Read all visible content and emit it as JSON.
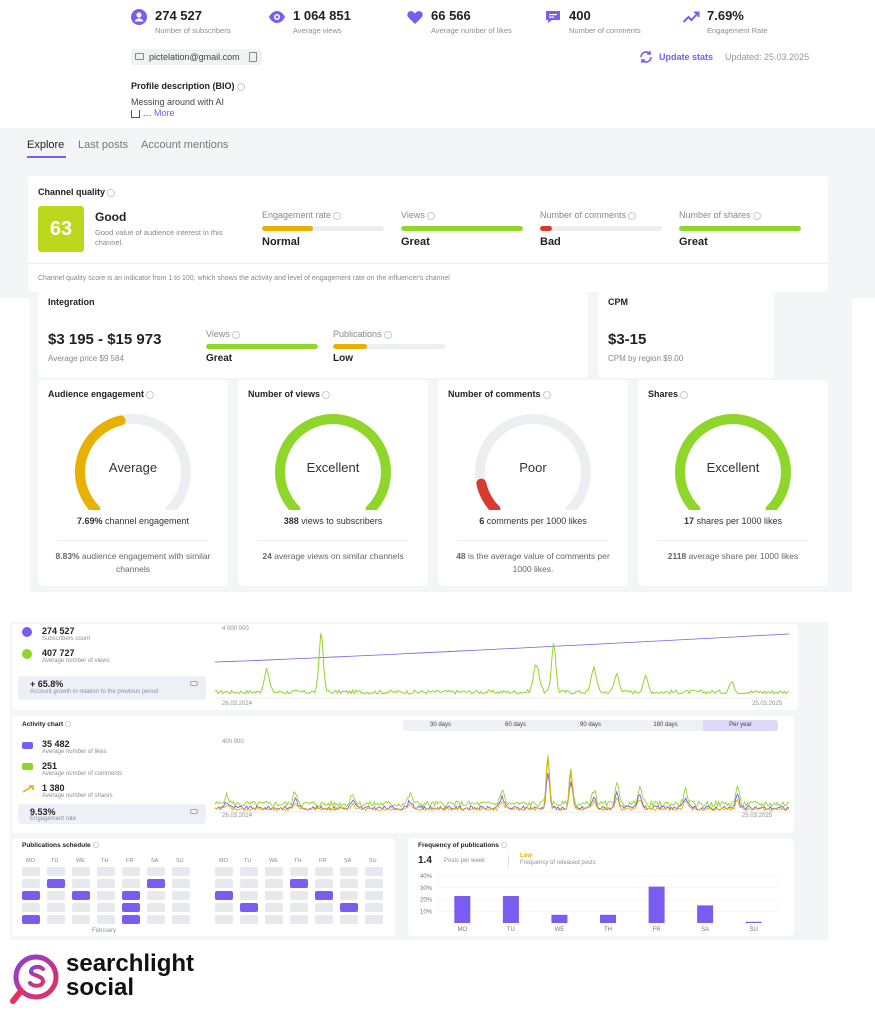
{
  "stats": [
    {
      "icon": "user-icon",
      "value": "274 527",
      "label": "Number of subscribers"
    },
    {
      "icon": "eye-icon",
      "value": "1 064 851",
      "label": "Average views"
    },
    {
      "icon": "heart-icon",
      "value": "66 566",
      "label": "Average number of likes"
    },
    {
      "icon": "comment-icon",
      "value": "400",
      "label": "Number of comments"
    },
    {
      "icon": "trend-icon",
      "value": "7.69%",
      "label": "Engagement Rate"
    }
  ],
  "profile": {
    "email": "pictelation@gmail.com",
    "update_label": "Update stats",
    "updated": "Updated: 25.03.2025",
    "bio_title": "Profile description (BIO)",
    "bio_text": "Messing around with AI",
    "bio_more_prefix": "…",
    "bio_more": "More"
  },
  "tabs": [
    "Explore",
    "Last posts",
    "Account mentions"
  ],
  "channel_quality": {
    "title": "Channel quality",
    "score": "63",
    "rating": "Good",
    "rating_desc": "Good value of audience interest in this channel.",
    "metrics": [
      {
        "label": "Engagement rate",
        "value": "Normal",
        "fill": 0.42,
        "color": "#e8b000"
      },
      {
        "label": "Views",
        "value": "Great",
        "fill": 1.0,
        "color": "#8fd62b"
      },
      {
        "label": "Number of comments",
        "value": "Bad",
        "fill": 0.1,
        "color": "#d93a2f"
      },
      {
        "label": "Number of shares",
        "value": "Great",
        "fill": 1.0,
        "color": "#8fd62b"
      }
    ],
    "footnote": "Channel quality score is an indicator from 1 to 100, which shows the activity and level of engagement rate on the influencer's channel"
  },
  "integration": {
    "title": "Integration",
    "price": "$3 195 - $15 973",
    "avg": "Average price $9 584",
    "metrics": [
      {
        "label": "Views",
        "value": "Great",
        "fill": 1.0,
        "color": "#8fd62b"
      },
      {
        "label": "Publications",
        "value": "Low",
        "fill": 0.3,
        "color": "#e8b000"
      }
    ]
  },
  "cpm": {
    "title": "CPM",
    "value": "$3-15",
    "sub": "CPM by region $9.00"
  },
  "gauges": [
    {
      "title": "Audience engagement",
      "label": "Average",
      "fill": 0.45,
      "color": "#e8b000",
      "desc_bold": "7.69%",
      "desc": " channel engagement",
      "foot_bold": "8.83%",
      "foot": " audience engagement with similar channels"
    },
    {
      "title": "Number of views",
      "label": "Excellent",
      "fill": 1.0,
      "color": "#8fd62b",
      "desc_bold": "388",
      "desc": " views to subscribers",
      "foot_bold": "24",
      "foot": " average views on similar channels"
    },
    {
      "title": "Number of comments",
      "label": "Poor",
      "fill": 0.12,
      "color": "#d93a2f",
      "desc_bold": "6",
      "desc": " comments per 1000 likes",
      "foot_bold": "48",
      "foot": " is the average value of comments per 1000 likes."
    },
    {
      "title": "Shares",
      "label": "Excellent",
      "fill": 1.0,
      "color": "#8fd62b",
      "desc_bold": "17",
      "desc": " shares per 1000 likes",
      "foot_bold": "2118",
      "foot": " average share per 1000 likes"
    }
  ],
  "growth": {
    "subs_value": "274 527",
    "subs_label": "Subscribers count",
    "views_value": "407 727",
    "views_label": "Average number of views",
    "growth_value": "+ 65.8%",
    "growth_label": "Account growth in relation to the previous period",
    "y_max": "4 000 000",
    "x_start": "26.03.2024",
    "x_end": "25.03.2025"
  },
  "activity": {
    "title": "Activity chart",
    "likes_value": "35 482",
    "likes_label": "Average number of likes",
    "comments_value": "251",
    "comments_label": "Average number of comments",
    "shares_value": "1 380",
    "shares_label": "Average number of shares",
    "er_value": "9.53%",
    "er_label": "Engagement rate",
    "y_max": "400 000",
    "x_start": "26.03.2024",
    "x_end": "25.03.2025",
    "periods": [
      "30 days",
      "60 days",
      "90 days",
      "180 days",
      "Per year"
    ],
    "active_period": "Per year"
  },
  "schedule": {
    "title": "Publications schedule",
    "days": [
      "MO",
      "TU",
      "WE",
      "TH",
      "FR",
      "SA",
      "SU"
    ],
    "month_label": "February"
  },
  "frequency": {
    "title": "Frequency of publications",
    "value": "1.4",
    "value_label": "Posts per week",
    "level": "Low",
    "level_label": "Frequency of released posts",
    "y_ticks": [
      "40%",
      "30%",
      "20%",
      "10%"
    ],
    "chart_data": {
      "type": "bar",
      "categories": [
        "MO",
        "TU",
        "WE",
        "TH",
        "FR",
        "SA",
        "SU"
      ],
      "values": [
        23,
        23,
        7,
        7,
        31,
        15,
        1
      ],
      "ylim": [
        0,
        40
      ],
      "color": "#7a5cf0"
    }
  },
  "brand": {
    "line1": "searchlight",
    "line2": "social"
  },
  "colors": {
    "accent": "#7a5cf0",
    "green": "#8fd62b",
    "yellow": "#e8b000",
    "red": "#d93a2f"
  }
}
